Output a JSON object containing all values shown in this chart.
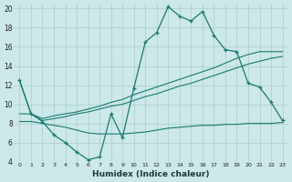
{
  "background_color": "#cce8e8",
  "grid_color": "#aacccc",
  "line_color": "#1a7a6e",
  "xlabel": "Humidex (Indice chaleur)",
  "xlim": [
    -0.5,
    23.5
  ],
  "ylim": [
    4,
    20.5
  ],
  "yticks": [
    4,
    6,
    8,
    10,
    12,
    14,
    16,
    18,
    20
  ],
  "xticks": [
    0,
    1,
    2,
    3,
    4,
    5,
    6,
    7,
    8,
    9,
    10,
    11,
    12,
    13,
    14,
    15,
    16,
    17,
    18,
    19,
    20,
    21,
    22,
    23
  ],
  "line1_x": [
    0,
    1,
    2,
    3,
    4,
    5,
    6,
    7,
    8,
    9,
    10,
    11,
    12,
    13,
    14,
    15,
    16,
    17,
    18,
    19,
    20,
    21,
    22,
    23
  ],
  "line1_y": [
    12.5,
    9.0,
    8.2,
    6.8,
    6.0,
    5.0,
    4.2,
    4.5,
    9.0,
    6.5,
    11.7,
    16.5,
    17.5,
    20.2,
    19.2,
    18.7,
    19.7,
    17.2,
    15.7,
    15.5,
    12.2,
    11.8,
    10.2,
    8.3
  ],
  "line2_x": [
    0,
    1,
    2,
    3,
    4,
    5,
    6,
    7,
    8,
    9,
    10,
    11,
    12,
    13,
    14,
    15,
    16,
    17,
    18,
    19,
    20,
    21,
    22,
    23
  ],
  "line2_y": [
    9.0,
    9.0,
    8.5,
    8.8,
    9.0,
    9.2,
    9.5,
    9.8,
    10.2,
    10.5,
    11.0,
    11.4,
    11.8,
    12.2,
    12.6,
    13.0,
    13.4,
    13.8,
    14.3,
    14.8,
    15.2,
    15.5,
    15.5,
    15.5
  ],
  "line3_x": [
    0,
    1,
    2,
    3,
    4,
    5,
    6,
    7,
    8,
    9,
    10,
    11,
    12,
    13,
    14,
    15,
    16,
    17,
    18,
    19,
    20,
    21,
    22,
    23
  ],
  "line3_y": [
    8.2,
    8.2,
    8.0,
    7.8,
    7.6,
    7.3,
    7.0,
    6.9,
    6.9,
    6.9,
    7.0,
    7.1,
    7.3,
    7.5,
    7.6,
    7.7,
    7.8,
    7.8,
    7.9,
    7.9,
    8.0,
    8.0,
    8.0,
    8.1
  ],
  "line4_x": [
    0,
    1,
    2,
    3,
    4,
    5,
    6,
    7,
    8,
    9,
    10,
    11,
    12,
    13,
    14,
    15,
    16,
    17,
    18,
    19,
    20,
    21,
    22,
    23
  ],
  "line4_y": [
    12.5,
    9.0,
    8.3,
    8.5,
    8.7,
    9.0,
    9.2,
    9.5,
    9.8,
    10.0,
    10.4,
    10.8,
    11.1,
    11.5,
    11.9,
    12.2,
    12.6,
    13.0,
    13.4,
    13.8,
    14.2,
    14.5,
    14.8,
    15.0
  ]
}
